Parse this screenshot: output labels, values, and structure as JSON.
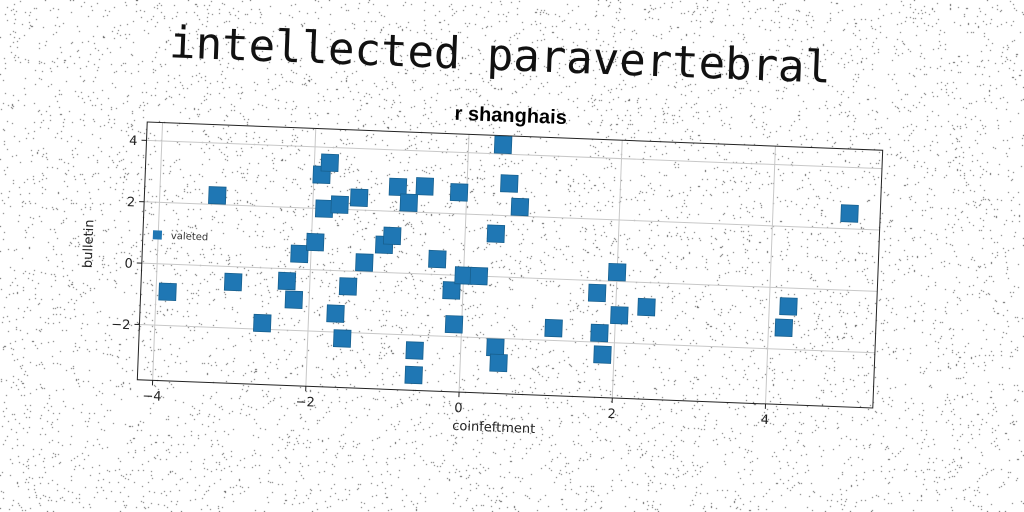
{
  "suptitle": "intellected paravertebral",
  "chart_data": {
    "type": "scatter",
    "title": "r shanghais",
    "xlabel": "coinfeftment",
    "ylabel": "bulletin",
    "xlim": [
      -4.2,
      5.4
    ],
    "ylim": [
      -3.8,
      4.6
    ],
    "xticks": [
      -4,
      -2,
      0,
      2,
      4
    ],
    "xtick_labels": [
      "−4",
      "−2",
      "0",
      "2",
      "4"
    ],
    "yticks": [
      -2,
      0,
      2,
      4
    ],
    "ytick_labels": [
      "−2",
      "0",
      "2",
      "4"
    ],
    "grid": true,
    "legend_position": "center-left",
    "series": [
      {
        "name": "valeted",
        "color": "#1f77b4",
        "marker": "square",
        "points": [
          [
            -3.85,
            -0.9
          ],
          [
            -3.25,
            2.3
          ],
          [
            -3.0,
            -0.5
          ],
          [
            -2.6,
            -1.8
          ],
          [
            -2.3,
            -0.4
          ],
          [
            -2.2,
            -1.0
          ],
          [
            -2.15,
            0.5
          ],
          [
            -1.95,
            0.9
          ],
          [
            -1.9,
            3.1
          ],
          [
            -1.85,
            2.0
          ],
          [
            -1.8,
            3.5
          ],
          [
            -1.65,
            -1.4
          ],
          [
            -1.65,
            2.15
          ],
          [
            -1.55,
            -2.2
          ],
          [
            -1.5,
            -0.5
          ],
          [
            -1.4,
            2.4
          ],
          [
            -1.3,
            0.3
          ],
          [
            -1.05,
            0.9
          ],
          [
            -0.95,
            1.2
          ],
          [
            -0.9,
            2.8
          ],
          [
            -0.75,
            2.3
          ],
          [
            -0.6,
            -2.5
          ],
          [
            -0.6,
            -3.3
          ],
          [
            -0.55,
            2.85
          ],
          [
            -0.35,
            0.5
          ],
          [
            -0.15,
            -0.5
          ],
          [
            -0.1,
            -1.6
          ],
          [
            -0.1,
            2.7
          ],
          [
            0.0,
            0.0
          ],
          [
            0.2,
            0.0
          ],
          [
            0.4,
            1.4
          ],
          [
            0.45,
            -2.3
          ],
          [
            0.45,
            4.3
          ],
          [
            0.5,
            -2.8
          ],
          [
            0.55,
            3.05
          ],
          [
            0.7,
            2.3
          ],
          [
            1.2,
            -1.6
          ],
          [
            1.75,
            -0.4
          ],
          [
            1.8,
            -1.7
          ],
          [
            1.85,
            -2.4
          ],
          [
            2.0,
            0.3
          ],
          [
            2.05,
            -1.1
          ],
          [
            2.4,
            -0.8
          ],
          [
            4.2,
            -1.3
          ],
          [
            4.25,
            -0.6
          ],
          [
            5.0,
            2.5
          ]
        ]
      }
    ]
  }
}
